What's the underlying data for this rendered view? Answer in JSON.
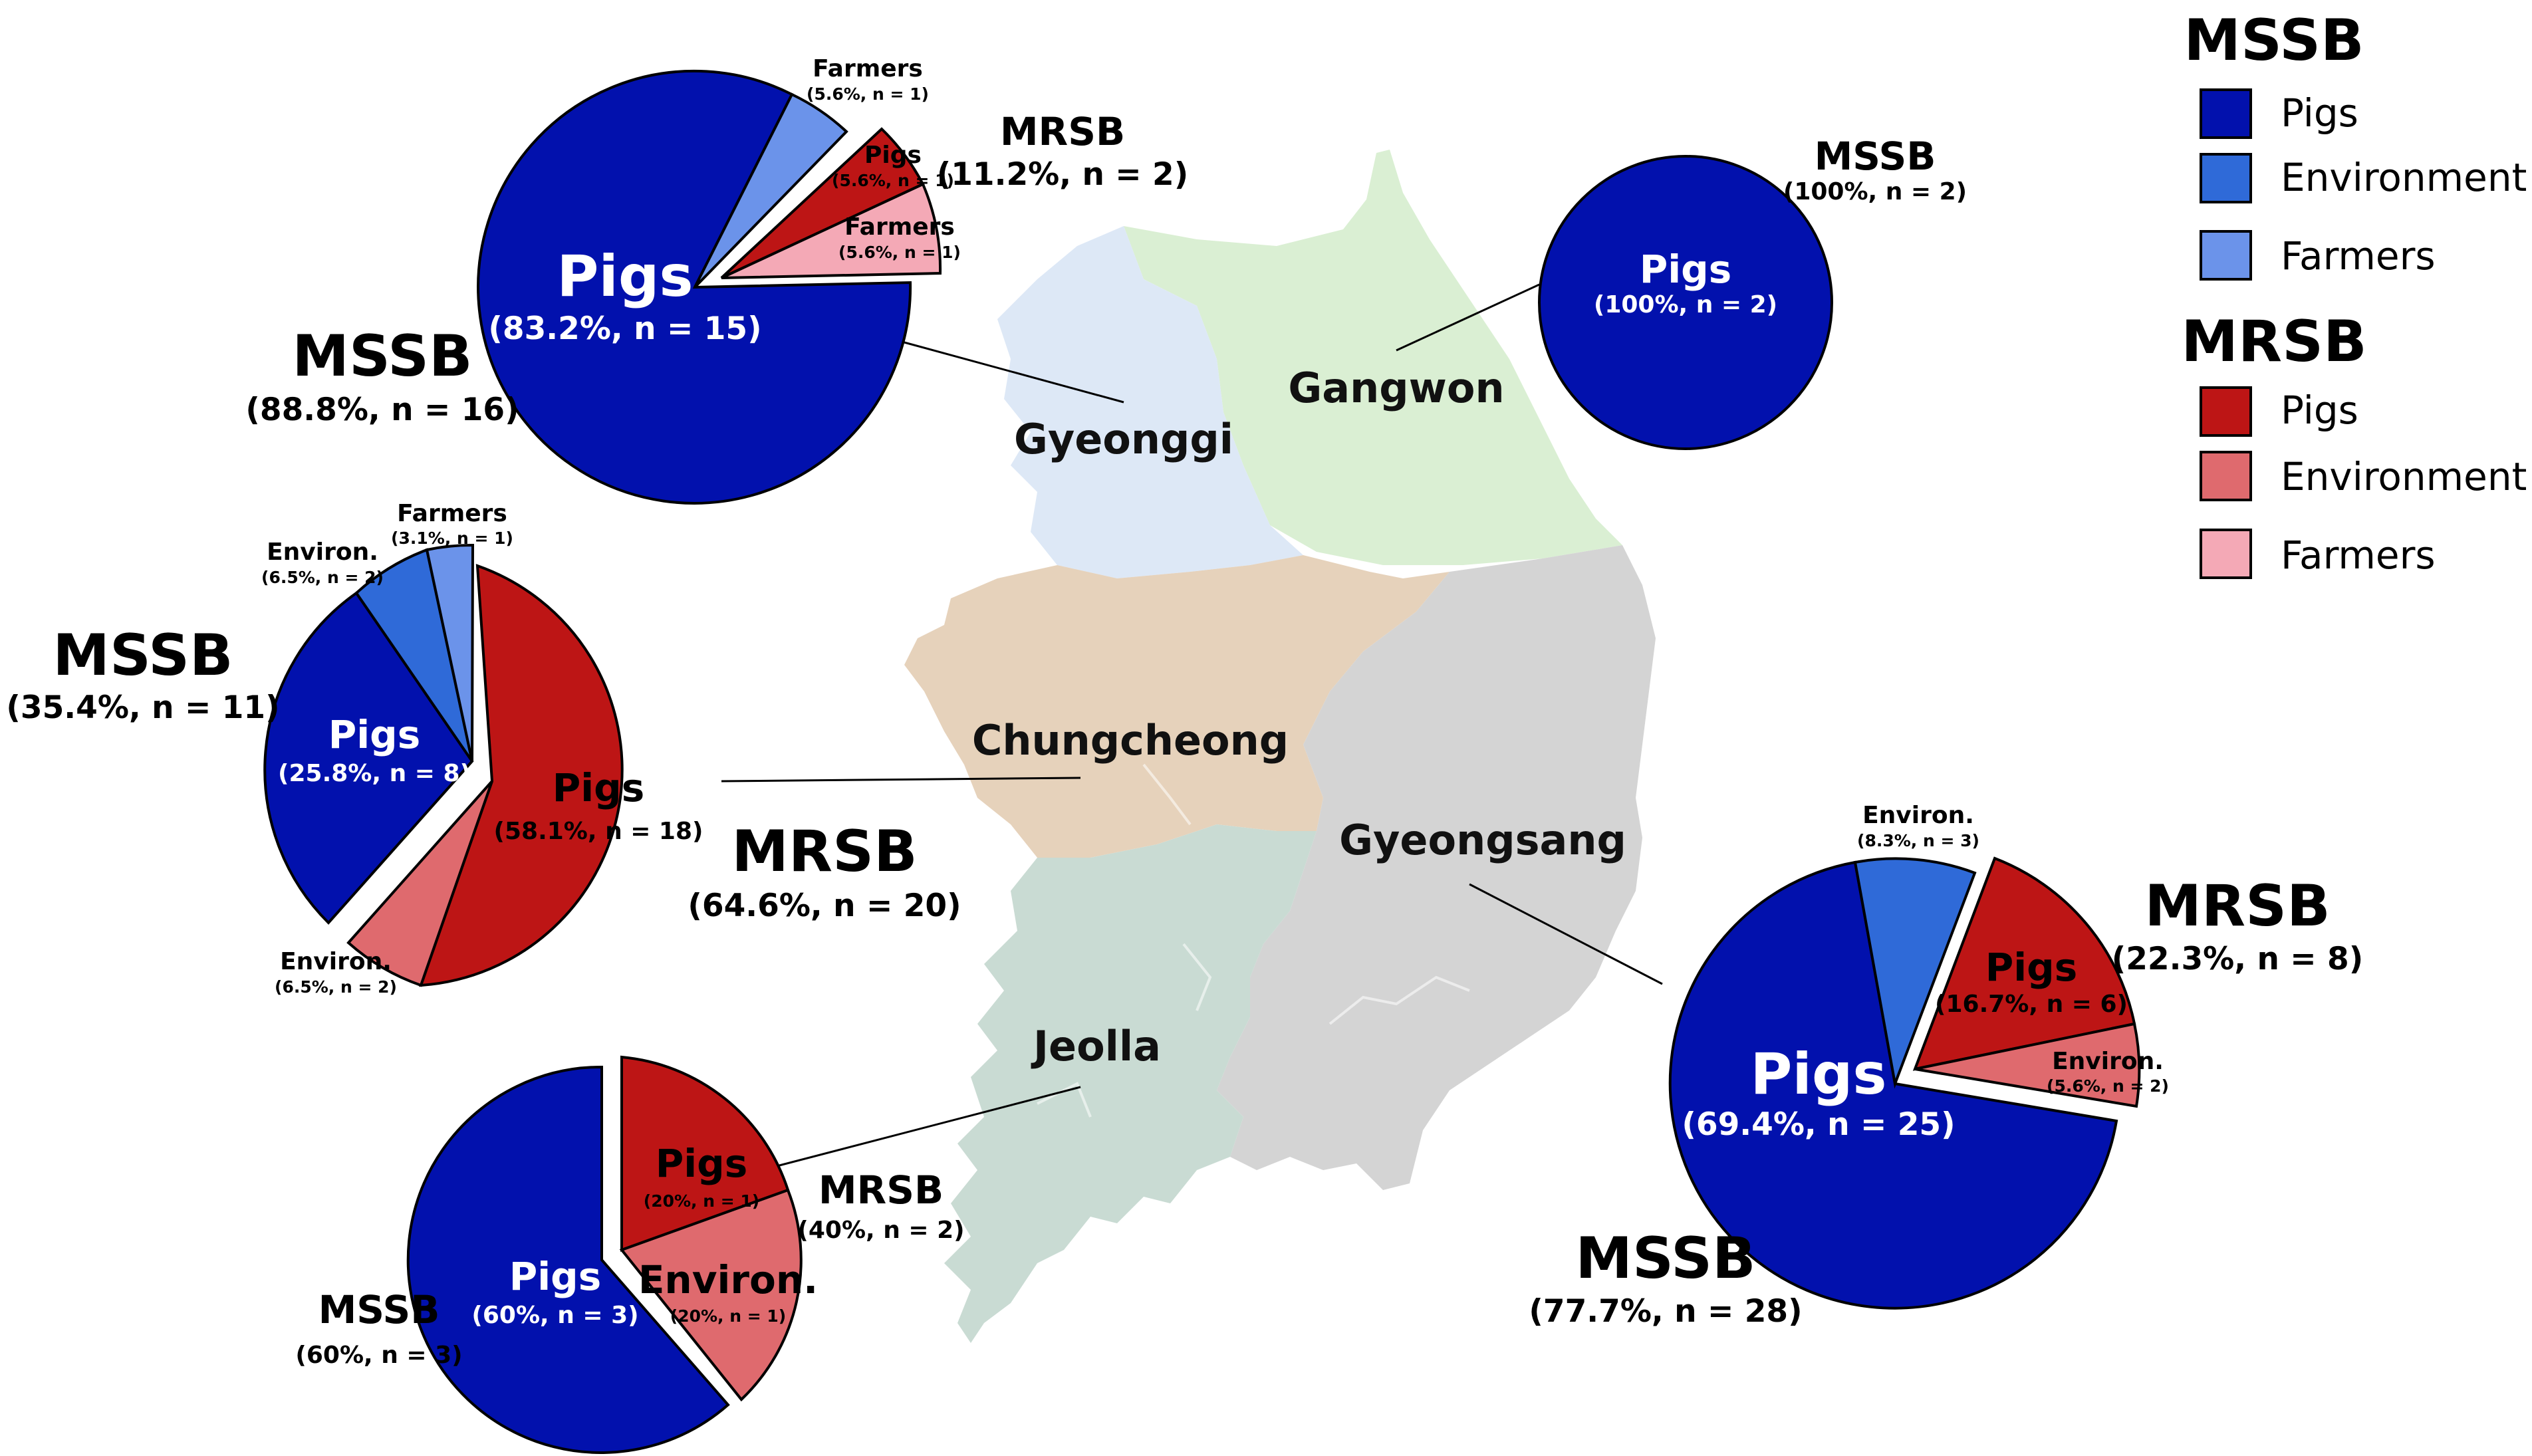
{
  "colors": {
    "mssb_pigs": "#0211ad",
    "mssb_environment": "#2f6ad8",
    "mssb_farmers": "#6b93ea",
    "mrsb_pigs": "#bd1515",
    "mrsb_environment": "#df6a6e",
    "mrsb_farmers": "#f4a9b6",
    "gyeonggi": "#dde8f6",
    "gangwon": "#daefd3",
    "chungcheong": "#e6d2bb",
    "gyeongsang": "#d4d4d4",
    "jeolla": "#c9dbd3"
  },
  "legend": {
    "mssb_title": "MSSB",
    "mssb_items": [
      "Pigs",
      "Environment",
      "Farmers"
    ],
    "mrsb_title": "MRSB",
    "mrsb_items": [
      "Pigs",
      "Environment",
      "Farmers"
    ]
  },
  "regions": {
    "gyeonggi": "Gyeonggi",
    "gangwon": "Gangwon",
    "chungcheong": "Chungcheong",
    "gyeongsang": "Gyeongsang",
    "jeolla": "Jeolla"
  },
  "chart_data": [
    {
      "type": "pie",
      "region": "Gyeonggi",
      "slices": [
        {
          "group": "MSSB",
          "category": "Pigs",
          "percent": 83.2,
          "n": 15
        },
        {
          "group": "MSSB",
          "category": "Farmers",
          "percent": 5.6,
          "n": 1
        },
        {
          "group": "MRSB",
          "category": "Pigs",
          "percent": 5.6,
          "n": 1
        },
        {
          "group": "MRSB",
          "category": "Farmers",
          "percent": 5.6,
          "n": 1
        }
      ],
      "labels": {
        "mssb_pigs_name": "Pigs",
        "mssb_pigs_value": "(83.2%, n = 15)",
        "mssb_farmers_name": "Farmers",
        "mssb_farmers_value": "(5.6%, n = 1)",
        "mrsb_pigs_name": "Pigs",
        "mrsb_pigs_value": "(5.6%, n = 1)",
        "mrsb_farmers_name": "Farmers",
        "mrsb_farmers_value": "(5.6%, n = 1)",
        "mssb_group": "MSSB",
        "mssb_group_value": "(88.8%, n = 16)",
        "mrsb_group": "MRSB",
        "mrsb_group_value": "(11.2%, n = 2)"
      }
    },
    {
      "type": "pie",
      "region": "Gangwon",
      "slices": [
        {
          "group": "MSSB",
          "category": "Pigs",
          "percent": 100,
          "n": 2
        }
      ],
      "labels": {
        "mssb_pigs_name": "Pigs",
        "mssb_pigs_value": "(100%, n = 2)",
        "mssb_group": "MSSB",
        "mssb_group_value": "(100%, n = 2)"
      }
    },
    {
      "type": "pie",
      "region": "Chungcheong",
      "slices": [
        {
          "group": "MRSB",
          "category": "Pigs",
          "percent": 58.1,
          "n": 18
        },
        {
          "group": "MRSB",
          "category": "Environment",
          "percent": 6.5,
          "n": 2
        },
        {
          "group": "MSSB",
          "category": "Pigs",
          "percent": 25.8,
          "n": 8
        },
        {
          "group": "MSSB",
          "category": "Environment",
          "percent": 6.5,
          "n": 2
        },
        {
          "group": "MSSB",
          "category": "Farmers",
          "percent": 3.1,
          "n": 1
        }
      ],
      "labels": {
        "mrsb_pigs_name": "Pigs",
        "mrsb_pigs_value": "(58.1%, n = 18)",
        "mrsb_env_name": "Environ.",
        "mrsb_env_value": "(6.5%, n = 2)",
        "mssb_pigs_name": "Pigs",
        "mssb_pigs_value": "(25.8%, n = 8)",
        "mssb_env_name": "Environ.",
        "mssb_env_value": "(6.5%, n = 2)",
        "mssb_farmers_name": "Farmers",
        "mssb_farmers_value": "(3.1%, n = 1)",
        "mssb_group": "MSSB",
        "mssb_group_value": "(35.4%, n = 11)",
        "mrsb_group": "MRSB",
        "mrsb_group_value": "(64.6%, n = 20)"
      }
    },
    {
      "type": "pie",
      "region": "Jeolla",
      "slices": [
        {
          "group": "MSSB",
          "category": "Pigs",
          "percent": 60,
          "n": 3
        },
        {
          "group": "MRSB",
          "category": "Pigs",
          "percent": 20,
          "n": 1
        },
        {
          "group": "MRSB",
          "category": "Environment",
          "percent": 20,
          "n": 1
        }
      ],
      "labels": {
        "mssb_pigs_name": "Pigs",
        "mssb_pigs_value": "(60%, n = 3)",
        "mrsb_pigs_name": "Pigs",
        "mrsb_pigs_value": "(20%, n = 1)",
        "mrsb_env_name": "Environ.",
        "mrsb_env_value": "(20%, n = 1)",
        "mssb_group": "MSSB",
        "mssb_group_value": "(60%, n = 3)",
        "mrsb_group": "MRSB",
        "mrsb_group_value": "(40%, n = 2)"
      }
    },
    {
      "type": "pie",
      "region": "Gyeongsang",
      "slices": [
        {
          "group": "MSSB",
          "category": "Pigs",
          "percent": 69.4,
          "n": 25
        },
        {
          "group": "MSSB",
          "category": "Environment",
          "percent": 8.3,
          "n": 3
        },
        {
          "group": "MRSB",
          "category": "Pigs",
          "percent": 16.7,
          "n": 6
        },
        {
          "group": "MRSB",
          "category": "Environment",
          "percent": 5.6,
          "n": 2
        }
      ],
      "labels": {
        "mssb_pigs_name": "Pigs",
        "mssb_pigs_value": "(69.4%, n = 25)",
        "mssb_env_name": "Environ.",
        "mssb_env_value": "(8.3%, n = 3)",
        "mrsb_pigs_name": "Pigs",
        "mrsb_pigs_value": "(16.7%, n = 6)",
        "mrsb_env_name": "Environ.",
        "mrsb_env_value": "(5.6%, n = 2)",
        "mssb_group": "MSSB",
        "mssb_group_value": "(77.7%, n = 28)",
        "mrsb_group": "MRSB",
        "mrsb_group_value": "(22.3%, n = 8)"
      }
    }
  ]
}
